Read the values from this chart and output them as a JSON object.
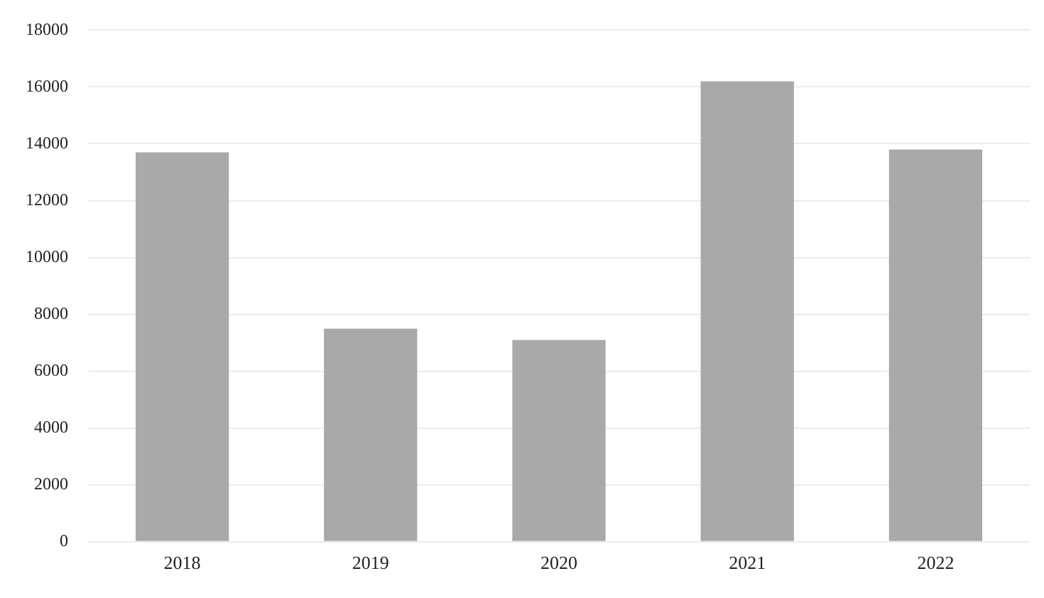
{
  "chart_data": {
    "type": "bar",
    "categories": [
      "2018",
      "2019",
      "2020",
      "2021",
      "2022"
    ],
    "values": [
      13700,
      7500,
      7100,
      16200,
      13800
    ],
    "color": "#a9a9a9",
    "ylim": [
      0,
      18000
    ],
    "yticks": [
      0,
      2000,
      4000,
      6000,
      8000,
      10000,
      12000,
      14000,
      16000,
      18000
    ],
    "grid": "y",
    "legend": false
  }
}
